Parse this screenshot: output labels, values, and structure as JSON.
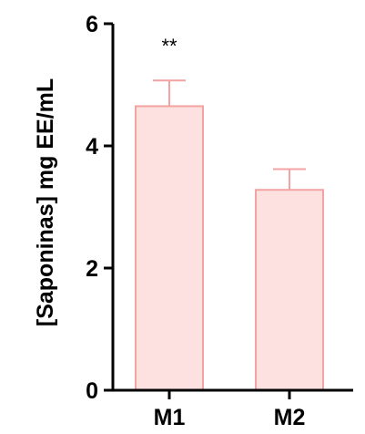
{
  "chart_data": {
    "type": "bar",
    "categories": [
      "M1",
      "M2"
    ],
    "values": [
      4.65,
      3.28
    ],
    "errors": [
      0.42,
      0.34
    ],
    "annotations": [
      "**",
      ""
    ],
    "ylabel": "[Saponinas] mg EE/mL",
    "xlabel": "",
    "ylim": [
      0,
      6
    ],
    "yticks": [
      "0",
      "2",
      "4",
      "6"
    ],
    "grid": false,
    "bar_fill": "#fde0e0",
    "bar_stroke": "#f4a3a3",
    "error_color": "#f4a3a3",
    "axis_color": "#000000"
  }
}
